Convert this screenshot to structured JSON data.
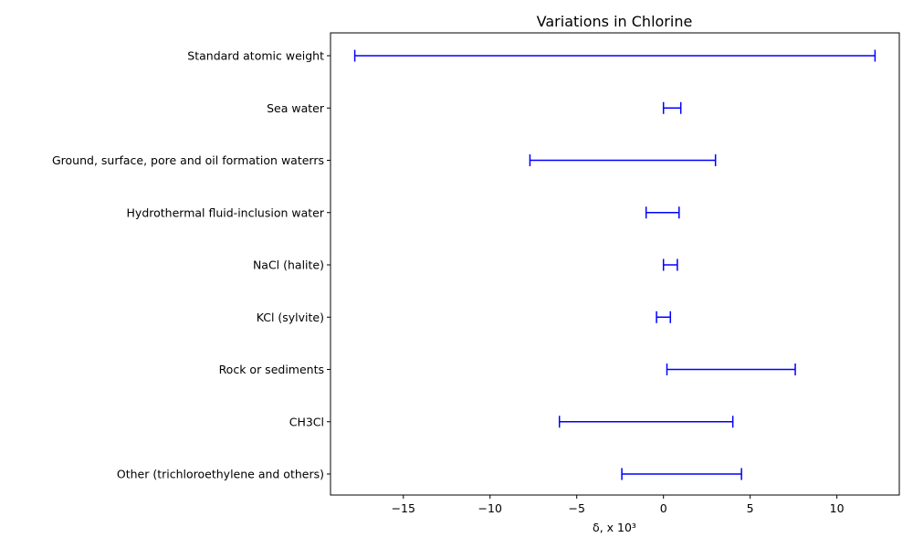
{
  "chart_data": {
    "type": "range",
    "title": "Variations  in Chlorine",
    "xlabel": "δ, x 10³",
    "ylabel": "",
    "xlim": [
      -19.2,
      13.6
    ],
    "xticks": [
      -15,
      -10,
      -5,
      0,
      5,
      10
    ],
    "xtick_labels": [
      "−15",
      "−10",
      "−5",
      "0",
      "5",
      "10"
    ],
    "grid": false,
    "series_color": "#0000ff",
    "categories": [
      "Standard atomic weight",
      "Sea water",
      "Ground, surface, pore and oil formation waterrs ",
      "Hydrothermal fluid-inclusion water",
      "NaCl (halite)",
      "KCl (sylvite)",
      "Rock or sediments ",
      "CH3Cl",
      "Other (trichloroethylene and others)"
    ],
    "ranges": [
      [
        -17.8,
        12.2
      ],
      [
        0.0,
        1.0
      ],
      [
        -7.7,
        3.0
      ],
      [
        -1.0,
        0.9
      ],
      [
        0.0,
        0.8
      ],
      [
        -0.4,
        0.4
      ],
      [
        0.2,
        7.6
      ],
      [
        -6.0,
        4.0
      ],
      [
        -2.4,
        4.5
      ]
    ]
  }
}
